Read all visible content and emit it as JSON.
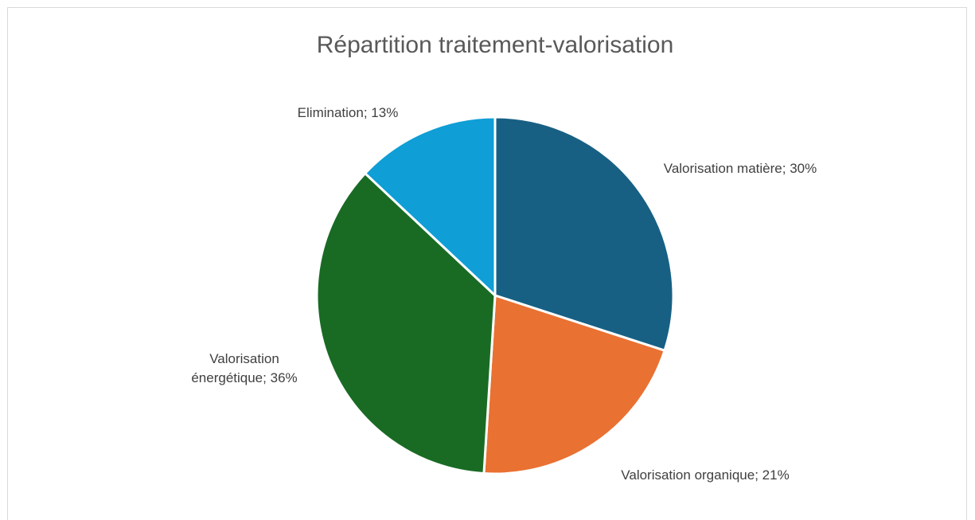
{
  "chart_data": {
    "type": "pie",
    "title": "Répartition traitement-valorisation",
    "categories": [
      "Valorisation matière",
      "Valorisation organique",
      "Valorisation énergétique",
      "Elimination"
    ],
    "values": [
      30,
      21,
      36,
      13
    ],
    "value_labels": [
      "30%",
      "21%",
      "36%",
      "13%"
    ],
    "label_separator": ";",
    "colors": [
      "#176084",
      "#e97132",
      "#196b24",
      "#0f9ed5"
    ]
  }
}
